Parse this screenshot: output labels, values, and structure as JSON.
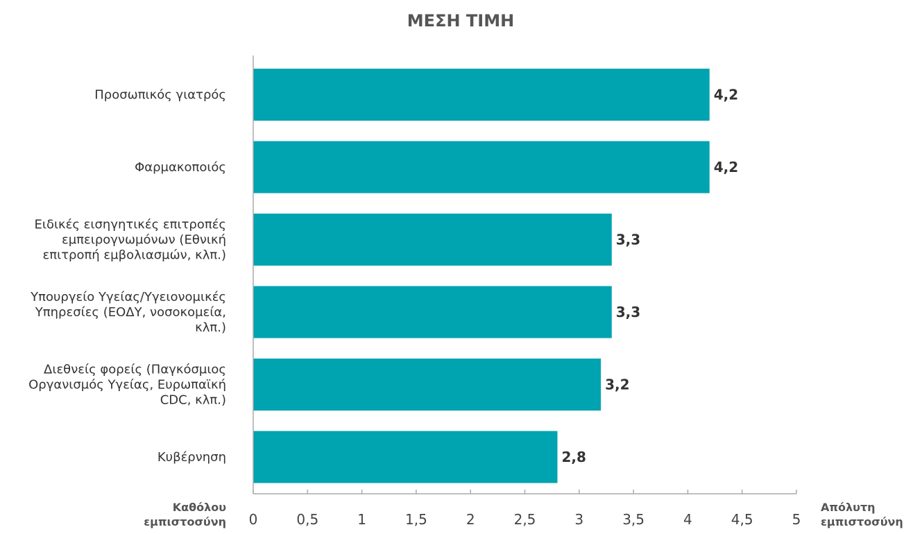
{
  "chart_data": {
    "type": "bar",
    "orientation": "horizontal",
    "title": "ΜΕΣΗ ΤΙΜΗ",
    "categories": [
      "Προσωπικός γιατρός",
      "Φαρμακοποιός",
      "Ειδικές εισηγητικές επιτροπές εμπειρογνωμόνων (Εθνική επιτροπή εμβολιασμών, κλπ.)",
      "Υπουργείο Υγείας/Υγειονομικές Υπηρεσίες (ΕΟΔΥ, νοσοκομεία, κλπ.)",
      "Διεθνείς φορείς (Παγκόσμιος Οργανισμός Υγείας, Ευρωπαϊκή CDC, κλπ.)",
      "Κυβέρνηση"
    ],
    "category_lines": [
      [
        "Προσωπικός γιατρός"
      ],
      [
        "Φαρμακοποιός"
      ],
      [
        "Ειδικές εισηγητικές επιτροπές",
        "εμπειρογνωμόνων (Εθνική",
        "επιτροπή εμβολιασμών, κλπ.)"
      ],
      [
        "Υπουργείο Υγείας/Υγειονομικές",
        "Υπηρεσίες (ΕΟΔΥ, νοσοκομεία,",
        "κλπ.)"
      ],
      [
        "Διεθνείς φορείς (Παγκόσμιος",
        "Οργανισμός Υγείας, Ευρωπαϊκή",
        "CDC, κλπ.)"
      ],
      [
        "Κυβέρνηση"
      ]
    ],
    "values": [
      4.2,
      4.2,
      3.3,
      3.3,
      3.2,
      2.8
    ],
    "value_labels": [
      "4,2",
      "4,2",
      "3,3",
      "3,3",
      "3,2",
      "2,8"
    ],
    "xlim": [
      0,
      5
    ],
    "x_ticks": [
      0,
      0.5,
      1,
      1.5,
      2,
      2.5,
      3,
      3.5,
      4,
      4.5,
      5
    ],
    "x_tick_labels": [
      "0",
      "0,5",
      "1",
      "1,5",
      "2",
      "2,5",
      "3",
      "3,5",
      "4",
      "4,5",
      "5"
    ],
    "scale_min_label": [
      "Καθόλου",
      "εμπιστοσύνη"
    ],
    "scale_max_label": [
      "Απόλυτη",
      "εμπιστοσύνη"
    ],
    "grid": false,
    "bar_color": "#00a3b0",
    "text_color": "#333333",
    "axis_color": "#aaaaaa"
  }
}
